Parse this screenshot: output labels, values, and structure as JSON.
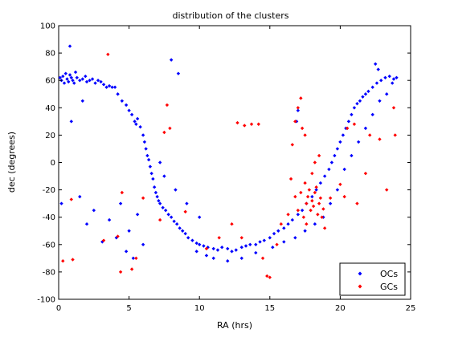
{
  "chart_data": {
    "type": "scatter",
    "title": "distribution of the clusters",
    "xlabel": "RA (hrs)",
    "ylabel": "dec (degrees)",
    "xlim": [
      0,
      25
    ],
    "ylim": [
      -100,
      100
    ],
    "xticks": [
      0,
      5,
      10,
      15,
      20,
      25
    ],
    "yticks": [
      -100,
      -80,
      -60,
      -40,
      -20,
      0,
      20,
      40,
      60,
      80,
      100
    ],
    "grid": false,
    "legend_position": "bottom-right",
    "series": [
      {
        "name": "OCs",
        "color": "#0000ff",
        "marker": "diamond",
        "points": [
          [
            0.1,
            62
          ],
          [
            0.2,
            60
          ],
          [
            0.3,
            63
          ],
          [
            0.4,
            58
          ],
          [
            0.5,
            65
          ],
          [
            0.6,
            61
          ],
          [
            0.7,
            59
          ],
          [
            0.8,
            64
          ],
          [
            0.9,
            62
          ],
          [
            1.0,
            60
          ],
          [
            1.1,
            58
          ],
          [
            1.2,
            66
          ],
          [
            0.8,
            85
          ],
          [
            1.3,
            62
          ],
          [
            1.5,
            60
          ],
          [
            1.7,
            61
          ],
          [
            1.9,
            63
          ],
          [
            2.0,
            59
          ],
          [
            2.2,
            60
          ],
          [
            2.4,
            61
          ],
          [
            2.6,
            58
          ],
          [
            2.8,
            60
          ],
          [
            3.0,
            59
          ],
          [
            3.2,
            57
          ],
          [
            3.4,
            55
          ],
          [
            3.6,
            56
          ],
          [
            3.8,
            55
          ],
          [
            4.0,
            55
          ],
          [
            4.2,
            50
          ],
          [
            4.5,
            45
          ],
          [
            4.8,
            42
          ],
          [
            5.0,
            38
          ],
          [
            5.2,
            35
          ],
          [
            5.4,
            30
          ],
          [
            5.5,
            28
          ],
          [
            5.6,
            32
          ],
          [
            5.8,
            26
          ],
          [
            6.0,
            20
          ],
          [
            6.1,
            15
          ],
          [
            6.2,
            10
          ],
          [
            6.3,
            5
          ],
          [
            6.4,
            2
          ],
          [
            6.5,
            -3
          ],
          [
            6.6,
            -8
          ],
          [
            6.7,
            -12
          ],
          [
            6.8,
            -18
          ],
          [
            6.9,
            -22
          ],
          [
            7.0,
            -25
          ],
          [
            7.1,
            -28
          ],
          [
            7.2,
            -30
          ],
          [
            7.4,
            -33
          ],
          [
            7.6,
            -35
          ],
          [
            7.8,
            -38
          ],
          [
            8.0,
            -40
          ],
          [
            8.2,
            -43
          ],
          [
            8.4,
            -45
          ],
          [
            8.6,
            -48
          ],
          [
            8.8,
            -50
          ],
          [
            9.0,
            -52
          ],
          [
            9.2,
            -55
          ],
          [
            9.5,
            -57
          ],
          [
            9.8,
            -59
          ],
          [
            10.0,
            -60
          ],
          [
            10.3,
            -61
          ],
          [
            10.6,
            -62
          ],
          [
            11.0,
            -63
          ],
          [
            11.3,
            -64
          ],
          [
            11.6,
            -62
          ],
          [
            12.0,
            -63
          ],
          [
            12.3,
            -65
          ],
          [
            12.6,
            -64
          ],
          [
            13.0,
            -62
          ],
          [
            13.3,
            -61
          ],
          [
            13.6,
            -60
          ],
          [
            14.0,
            -60
          ],
          [
            14.3,
            -58
          ],
          [
            14.6,
            -57
          ],
          [
            15.0,
            -55
          ],
          [
            15.3,
            -52
          ],
          [
            15.6,
            -50
          ],
          [
            16.0,
            -48
          ],
          [
            16.3,
            -45
          ],
          [
            16.6,
            -42
          ],
          [
            17.0,
            -38
          ],
          [
            17.3,
            -35
          ],
          [
            17.6,
            -30
          ],
          [
            18.0,
            -25
          ],
          [
            18.3,
            -20
          ],
          [
            18.6,
            -15
          ],
          [
            18.9,
            -10
          ],
          [
            19.2,
            -5
          ],
          [
            19.4,
            0
          ],
          [
            19.6,
            5
          ],
          [
            19.8,
            10
          ],
          [
            20.0,
            15
          ],
          [
            20.2,
            20
          ],
          [
            20.4,
            25
          ],
          [
            20.6,
            30
          ],
          [
            20.8,
            35
          ],
          [
            21.0,
            40
          ],
          [
            21.2,
            43
          ],
          [
            21.4,
            45
          ],
          [
            21.6,
            48
          ],
          [
            21.8,
            50
          ],
          [
            22.0,
            52
          ],
          [
            22.3,
            55
          ],
          [
            22.6,
            58
          ],
          [
            22.9,
            60
          ],
          [
            23.2,
            62
          ],
          [
            23.5,
            63
          ],
          [
            23.8,
            61
          ],
          [
            24.0,
            62
          ],
          [
            23.7,
            58
          ],
          [
            22.5,
            72
          ],
          [
            22.7,
            68
          ],
          [
            0.2,
            -30
          ],
          [
            1.5,
            -25
          ],
          [
            2.0,
            -45
          ],
          [
            3.1,
            -58
          ],
          [
            3.6,
            -42
          ],
          [
            4.1,
            -55
          ],
          [
            4.4,
            -30
          ],
          [
            4.8,
            -65
          ],
          [
            5.0,
            -50
          ],
          [
            5.3,
            -70
          ],
          [
            5.6,
            -38
          ],
          [
            6.0,
            -60
          ],
          [
            8.0,
            75
          ],
          [
            8.5,
            65
          ],
          [
            7.2,
            0
          ],
          [
            7.5,
            -10
          ],
          [
            8.3,
            -20
          ],
          [
            9.1,
            -30
          ],
          [
            10.0,
            -40
          ],
          [
            9.8,
            -65
          ],
          [
            10.5,
            -68
          ],
          [
            11.0,
            -70
          ],
          [
            12.0,
            -72
          ],
          [
            13.0,
            -70
          ],
          [
            14.0,
            -66
          ],
          [
            15.2,
            -62
          ],
          [
            16.0,
            -58
          ],
          [
            16.8,
            -55
          ],
          [
            17.5,
            -50
          ],
          [
            18.2,
            -45
          ],
          [
            18.8,
            -40
          ],
          [
            19.3,
            -30
          ],
          [
            19.8,
            -20
          ],
          [
            20.3,
            -5
          ],
          [
            20.8,
            5
          ],
          [
            21.3,
            15
          ],
          [
            21.8,
            25
          ],
          [
            22.3,
            35
          ],
          [
            22.8,
            45
          ],
          [
            23.3,
            50
          ],
          [
            17.0,
            38
          ],
          [
            16.9,
            30
          ],
          [
            0.9,
            30
          ],
          [
            1.7,
            45
          ],
          [
            2.5,
            -35
          ]
        ]
      },
      {
        "name": "GCs",
        "color": "#ff0000",
        "marker": "diamond",
        "points": [
          [
            3.5,
            79
          ],
          [
            0.3,
            -72
          ],
          [
            1.0,
            -71
          ],
          [
            0.9,
            -27
          ],
          [
            3.2,
            -57
          ],
          [
            4.2,
            -54
          ],
          [
            4.4,
            -80
          ],
          [
            5.2,
            -78
          ],
          [
            5.5,
            -70
          ],
          [
            4.5,
            -22
          ],
          [
            6.0,
            -26
          ],
          [
            7.5,
            22
          ],
          [
            7.7,
            42
          ],
          [
            7.9,
            25
          ],
          [
            7.2,
            -42
          ],
          [
            9.0,
            -36
          ],
          [
            10.5,
            -63
          ],
          [
            11.4,
            -55
          ],
          [
            12.3,
            -45
          ],
          [
            13.0,
            -55
          ],
          [
            12.7,
            29
          ],
          [
            13.2,
            27
          ],
          [
            13.7,
            28
          ],
          [
            14.2,
            28
          ],
          [
            14.5,
            -70
          ],
          [
            14.8,
            -83
          ],
          [
            15.0,
            -84
          ],
          [
            15.5,
            -60
          ],
          [
            15.8,
            -45
          ],
          [
            16.3,
            -38
          ],
          [
            16.8,
            -25
          ],
          [
            16.5,
            -12
          ],
          [
            16.6,
            13
          ],
          [
            16.8,
            30
          ],
          [
            17.0,
            40
          ],
          [
            17.2,
            47
          ],
          [
            17.3,
            25
          ],
          [
            17.5,
            20
          ],
          [
            17.6,
            -30
          ],
          [
            17.7,
            -25
          ],
          [
            17.8,
            -20
          ],
          [
            17.9,
            -35
          ],
          [
            18.0,
            -28
          ],
          [
            18.1,
            -32
          ],
          [
            18.2,
            -22
          ],
          [
            18.3,
            -18
          ],
          [
            18.4,
            -38
          ],
          [
            18.5,
            -30
          ],
          [
            18.6,
            -26
          ],
          [
            18.7,
            -40
          ],
          [
            18.8,
            -34
          ],
          [
            17.4,
            -40
          ],
          [
            17.6,
            -45
          ],
          [
            17.5,
            -15
          ],
          [
            17.2,
            -22
          ],
          [
            17.0,
            -35
          ],
          [
            18.0,
            -8
          ],
          [
            18.2,
            0
          ],
          [
            18.5,
            5
          ],
          [
            18.9,
            -48
          ],
          [
            19.3,
            -26
          ],
          [
            20.0,
            -16
          ],
          [
            20.5,
            25
          ],
          [
            21.0,
            28
          ],
          [
            21.2,
            -30
          ],
          [
            21.8,
            -8
          ],
          [
            22.1,
            20
          ],
          [
            22.8,
            17
          ],
          [
            23.3,
            -20
          ],
          [
            23.8,
            40
          ],
          [
            23.9,
            20
          ],
          [
            20.3,
            -25
          ]
        ]
      }
    ]
  }
}
